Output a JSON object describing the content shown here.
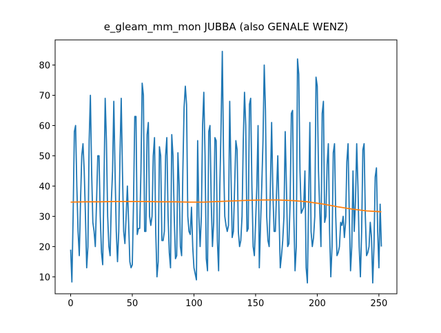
{
  "chart_data": {
    "type": "line",
    "title": "e_gleam_mm_mon JUBBA (also GENALE WENZ)",
    "xlim": [
      -12.6,
      264.6
    ],
    "xticks": [
      0,
      50,
      100,
      150,
      200,
      250
    ],
    "ylim": [
      4.4,
      88.3
    ],
    "yticks": [
      10,
      20,
      30,
      40,
      50,
      60,
      70,
      80
    ],
    "series": [
      {
        "color": "#1f77b4",
        "x": [
          0,
          1,
          2,
          3,
          4,
          5,
          6,
          7,
          8,
          9,
          10,
          11,
          12,
          13,
          14,
          15,
          16,
          17,
          18,
          19,
          20,
          21,
          22,
          23,
          24,
          25,
          26,
          27,
          28,
          29,
          30,
          31,
          32,
          33,
          34,
          35,
          36,
          37,
          38,
          39,
          40,
          41,
          42,
          43,
          44,
          45,
          46,
          47,
          48,
          49,
          50,
          51,
          52,
          53,
          54,
          55,
          56,
          57,
          58,
          59,
          60,
          61,
          62,
          63,
          64,
          65,
          66,
          67,
          68,
          69,
          70,
          71,
          72,
          73,
          74,
          75,
          76,
          77,
          78,
          79,
          80,
          81,
          82,
          83,
          84,
          85,
          86,
          87,
          88,
          89,
          90,
          91,
          92,
          93,
          94,
          95,
          96,
          97,
          98,
          99,
          100,
          101,
          102,
          103,
          104,
          105,
          106,
          107,
          108,
          109,
          110,
          111,
          112,
          113,
          114,
          115,
          116,
          117,
          118,
          119,
          120,
          121,
          122,
          123,
          124,
          125,
          126,
          127,
          128,
          129,
          130,
          131,
          132,
          133,
          134,
          135,
          136,
          137,
          138,
          139,
          140,
          141,
          142,
          143,
          144,
          145,
          146,
          147,
          148,
          149,
          150,
          151,
          152,
          153,
          154,
          155,
          156,
          157,
          158,
          159,
          160,
          161,
          162,
          163,
          164,
          165,
          166,
          167,
          168,
          169,
          170,
          171,
          172,
          173,
          174,
          175,
          176,
          177,
          178,
          179,
          180,
          181,
          182,
          183,
          184,
          185,
          186,
          187,
          188,
          189,
          190,
          191,
          192,
          193,
          194,
          195,
          196,
          197,
          198,
          199,
          200,
          201,
          202,
          203,
          204,
          205,
          206,
          207,
          208,
          209,
          210,
          211,
          212,
          213,
          214,
          215,
          216,
          217,
          218,
          219,
          220,
          221,
          222,
          223,
          224,
          225,
          226,
          227,
          228,
          229,
          230,
          231,
          232,
          233,
          234,
          235,
          236,
          237,
          238,
          239,
          240,
          241,
          242,
          243,
          244,
          245,
          246,
          247,
          248,
          249,
          250,
          251,
          252
        ],
        "values": [
          19,
          8.3,
          30,
          58,
          60,
          40,
          25,
          17,
          35,
          50,
          54,
          45,
          30,
          13,
          20,
          55,
          70,
          45,
          28,
          25,
          20,
          35,
          50,
          50,
          30,
          18,
          14,
          40,
          69,
          55,
          30,
          20,
          17,
          35,
          45,
          68,
          45,
          25,
          15,
          25,
          50,
          69,
          45,
          25,
          21,
          30,
          40,
          28,
          15,
          13,
          14,
          35,
          63,
          63,
          24,
          26,
          26,
          45,
          74,
          70,
          25,
          25,
          57,
          61,
          30,
          27,
          30,
          50,
          56,
          25,
          10,
          15,
          53,
          50,
          22,
          22,
          25,
          50,
          56,
          30,
          18,
          13,
          57,
          50,
          30,
          16,
          17,
          51,
          40,
          20,
          17,
          45,
          66,
          73,
          67,
          30,
          25,
          24,
          33,
          20,
          13,
          11,
          9,
          55,
          30,
          20,
          30,
          60,
          71,
          50,
          16,
          12,
          58,
          60,
          35,
          20,
          28,
          56,
          55,
          22,
          12,
          40,
          60,
          84.5,
          50,
          30,
          27,
          25,
          27,
          68,
          45,
          23,
          25,
          40,
          55,
          52,
          25,
          20,
          22,
          30,
          55,
          71,
          60,
          25,
          26,
          67,
          69,
          40,
          20,
          17,
          28,
          40,
          60,
          13,
          27,
          40,
          55,
          80,
          65,
          30,
          22,
          20,
          40,
          61,
          38,
          25,
          25,
          38,
          50,
          31,
          13,
          17,
          22,
          30,
          58,
          40,
          20,
          21,
          35,
          64,
          65,
          30,
          12,
          20,
          82,
          77,
          45,
          31,
          32,
          33,
          45,
          13,
          8,
          35,
          61,
          25,
          20,
          23,
          30,
          76,
          73,
          45,
          32,
          20,
          64,
          68,
          28,
          30,
          47,
          54,
          25,
          10,
          20,
          51,
          54,
          30,
          17,
          18,
          20,
          28,
          27,
          30,
          23,
          28,
          48,
          54,
          30,
          12,
          20,
          45,
          25,
          35,
          54,
          40,
          20,
          10,
          25,
          52,
          54,
          30,
          17,
          18,
          20,
          28,
          23,
          8,
          20,
          43,
          46,
          25,
          13,
          34,
          20
        ]
      },
      {
        "color": "#ff7f0e",
        "x": [
          0,
          12,
          24,
          36,
          48,
          60,
          72,
          84,
          96,
          108,
          120,
          132,
          144,
          156,
          168,
          180,
          192,
          204,
          216,
          228,
          240,
          252
        ],
        "values": [
          34.7,
          34.8,
          34.8,
          34.9,
          34.9,
          34.9,
          34.8,
          34.8,
          34.7,
          34.7,
          34.9,
          35.1,
          35.3,
          35.4,
          35.4,
          35.2,
          34.8,
          34.1,
          33.2,
          32.4,
          31.8,
          31.5
        ]
      }
    ]
  }
}
